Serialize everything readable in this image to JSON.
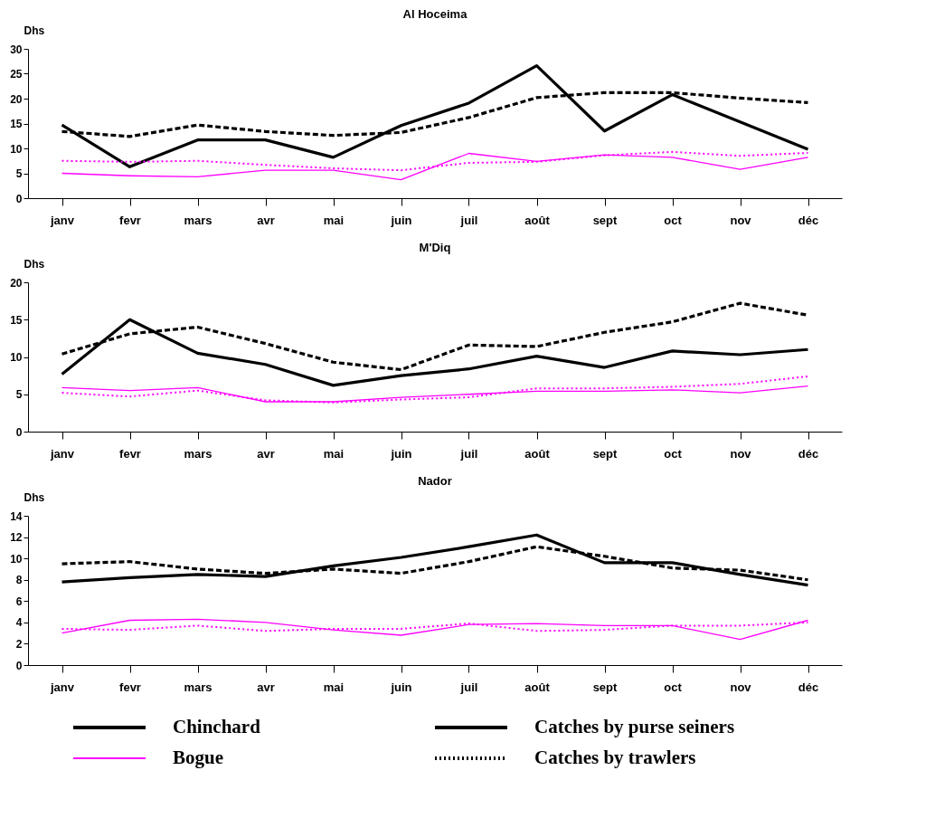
{
  "chart_data": [
    {
      "type": "line",
      "title": "Al Hoceima",
      "ylabel": "Dhs",
      "categories": [
        "janv",
        "fevr",
        "mars",
        "avr",
        "mai",
        "juin",
        "juil",
        "août",
        "sept",
        "oct",
        "nov",
        "déc"
      ],
      "ylim": [
        0,
        30
      ],
      "yticks": [
        0,
        5,
        10,
        15,
        20,
        25,
        30
      ],
      "grid": false,
      "legend": false,
      "marker": "none",
      "series": [
        {
          "color": "#000000",
          "line_style": "solid",
          "values": [
            14.7,
            6.3,
            11.7,
            11.7,
            8.2,
            14.6,
            19.1,
            26.6,
            13.5,
            20.8,
            15.3,
            9.8
          ]
        },
        {
          "color": "#000000",
          "line_style": "dashed",
          "values": [
            13.4,
            12.4,
            14.7,
            13.4,
            12.6,
            13.2,
            16.2,
            20.2,
            21.2,
            21.2,
            20.1,
            19.2
          ]
        },
        {
          "color": "#ff00ff",
          "line_style": "solid",
          "values": [
            5.0,
            4.5,
            4.3,
            5.6,
            5.6,
            3.7,
            9.0,
            7.4,
            8.7,
            8.2,
            5.8,
            8.2
          ]
        },
        {
          "color": "#ff00ff",
          "line_style": "dotted",
          "values": [
            7.5,
            7.3,
            7.5,
            6.7,
            6.0,
            5.6,
            7.1,
            7.3,
            8.6,
            9.3,
            8.5,
            9.1
          ]
        }
      ]
    },
    {
      "type": "line",
      "title": "M'Diq",
      "ylabel": "Dhs",
      "categories": [
        "janv",
        "fevr",
        "mars",
        "avr",
        "mai",
        "juin",
        "juil",
        "août",
        "sept",
        "oct",
        "nov",
        "déc"
      ],
      "ylim": [
        0,
        20
      ],
      "yticks": [
        0,
        5,
        10,
        15,
        20
      ],
      "grid": false,
      "legend": false,
      "marker": "none",
      "series": [
        {
          "color": "#000000",
          "line_style": "solid",
          "values": [
            7.7,
            15.0,
            10.5,
            9.0,
            6.2,
            7.5,
            8.4,
            10.1,
            8.6,
            10.8,
            10.3,
            11.0
          ]
        },
        {
          "color": "#000000",
          "line_style": "dashed",
          "values": [
            10.4,
            13.1,
            14.0,
            11.8,
            9.3,
            8.3,
            11.6,
            11.4,
            13.3,
            14.7,
            17.2,
            15.6
          ]
        },
        {
          "color": "#ff00ff",
          "line_style": "solid",
          "values": [
            5.9,
            5.5,
            5.9,
            4.0,
            4.0,
            4.6,
            5.0,
            5.4,
            5.4,
            5.6,
            5.2,
            6.1
          ]
        },
        {
          "color": "#ff00ff",
          "line_style": "dotted",
          "values": [
            5.2,
            4.7,
            5.5,
            4.2,
            3.9,
            4.3,
            4.6,
            5.8,
            5.8,
            6.0,
            6.4,
            7.4
          ]
        }
      ]
    },
    {
      "type": "line",
      "title": "Nador",
      "ylabel": "Dhs",
      "categories": [
        "janv",
        "fevr",
        "mars",
        "avr",
        "mai",
        "juin",
        "juil",
        "août",
        "sept",
        "oct",
        "nov",
        "déc"
      ],
      "ylim": [
        0,
        14
      ],
      "yticks": [
        0,
        2,
        4,
        6,
        8,
        10,
        12,
        14
      ],
      "grid": false,
      "legend": false,
      "marker": "none",
      "series": [
        {
          "color": "#000000",
          "line_style": "solid",
          "values": [
            7.8,
            8.2,
            8.5,
            8.3,
            9.3,
            10.1,
            11.1,
            12.2,
            9.6,
            9.6,
            8.5,
            7.5
          ]
        },
        {
          "color": "#000000",
          "line_style": "dashed",
          "values": [
            9.5,
            9.7,
            9.0,
            8.6,
            9.0,
            8.6,
            9.7,
            11.1,
            10.2,
            9.1,
            8.9,
            8.0
          ]
        },
        {
          "color": "#ff00ff",
          "line_style": "solid",
          "values": [
            3.0,
            4.2,
            4.3,
            4.0,
            3.3,
            2.8,
            3.8,
            3.9,
            3.7,
            3.7,
            2.4,
            4.2
          ]
        },
        {
          "color": "#ff00ff",
          "line_style": "dotted",
          "values": [
            3.4,
            3.3,
            3.7,
            3.2,
            3.4,
            3.4,
            3.9,
            3.2,
            3.3,
            3.7,
            3.7,
            4.0
          ]
        }
      ]
    },
    {
      "type": "other",
      "annotations": [
        "Chinchard",
        "Catches by purse seiners",
        "Bogue",
        "Catches by trawlers"
      ]
    }
  ]
}
